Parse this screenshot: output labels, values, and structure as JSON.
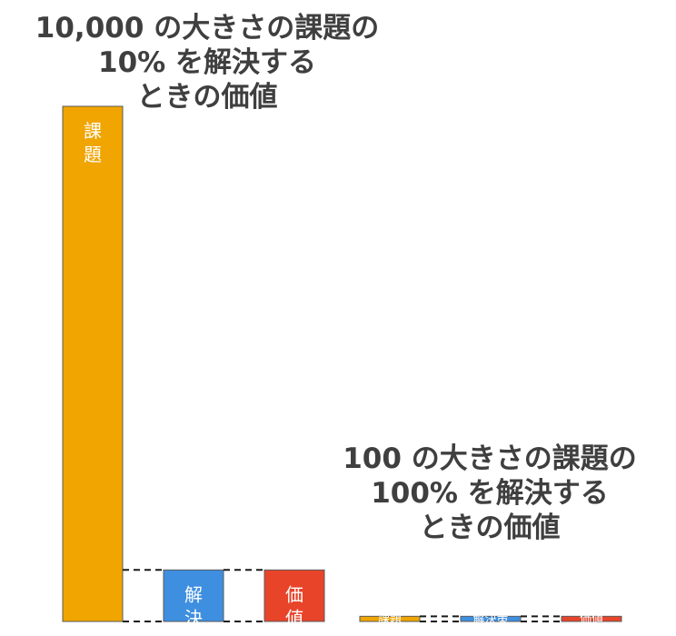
{
  "chart_data": [
    {
      "type": "bar",
      "title_lines": [
        "10,000 の大きさの課題の",
        "10% を解決する",
        "ときの価値"
      ],
      "categories": [
        "課題",
        "解決策",
        "価値"
      ],
      "values": [
        10000,
        1000,
        1000
      ],
      "colors": [
        "#f0a500",
        "#3f8fe0",
        "#e8442a"
      ],
      "connectors": "dashed",
      "grid": false,
      "legend": "none"
    },
    {
      "type": "bar",
      "title_lines": [
        "100 の大きさの課題の",
        "100% を解決する",
        "ときの価値"
      ],
      "categories": [
        "課題",
        "解決策",
        "価値"
      ],
      "values": [
        100,
        100,
        100
      ],
      "colors": [
        "#f0a500",
        "#3f8fe0",
        "#e8442a"
      ],
      "connectors": "dashed",
      "grid": false,
      "legend": "none"
    }
  ]
}
